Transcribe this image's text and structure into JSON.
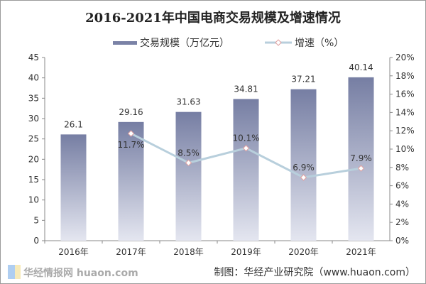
{
  "chart_data": {
    "type": "bar+line",
    "title": "2016-2021年中国电商交易规模及增速情况",
    "categories": [
      "2016年",
      "2017年",
      "2018年",
      "2019年",
      "2020年",
      "2021年"
    ],
    "series": [
      {
        "name": "交易规模（万亿元）",
        "type": "bar",
        "axis": "left",
        "values": [
          26.1,
          29.16,
          31.63,
          34.81,
          37.21,
          40.14
        ],
        "labels": [
          "26.1",
          "29.16",
          "31.63",
          "34.81",
          "37.21",
          "40.14"
        ]
      },
      {
        "name": "增速（%）",
        "type": "line",
        "axis": "right",
        "values": [
          null,
          11.7,
          8.5,
          10.1,
          6.9,
          7.9
        ],
        "labels": [
          "",
          "11.7%",
          "8.5%",
          "10.1%",
          "6.9%",
          "7.9%"
        ]
      }
    ],
    "left_axis": {
      "ylim": [
        0,
        45
      ],
      "ticks": [
        "0",
        "5",
        "10",
        "15",
        "20",
        "25",
        "30",
        "35",
        "40",
        "45"
      ]
    },
    "right_axis": {
      "ylim": [
        0,
        20
      ],
      "ticks": [
        "0%",
        "2%",
        "4%",
        "6%",
        "8%",
        "10%",
        "12%",
        "14%",
        "16%",
        "18%",
        "20%"
      ]
    },
    "legend_position": "top",
    "grid": false,
    "colors": {
      "bar_top": "#767ea3",
      "bar_bottom": "#e4e6f0",
      "line": "#b8cfdc",
      "marker": "#e0a0a0"
    }
  },
  "credit": "制图：华经产业研究院（www.huaon.com）",
  "watermark": "华经情报网 huaon.com"
}
